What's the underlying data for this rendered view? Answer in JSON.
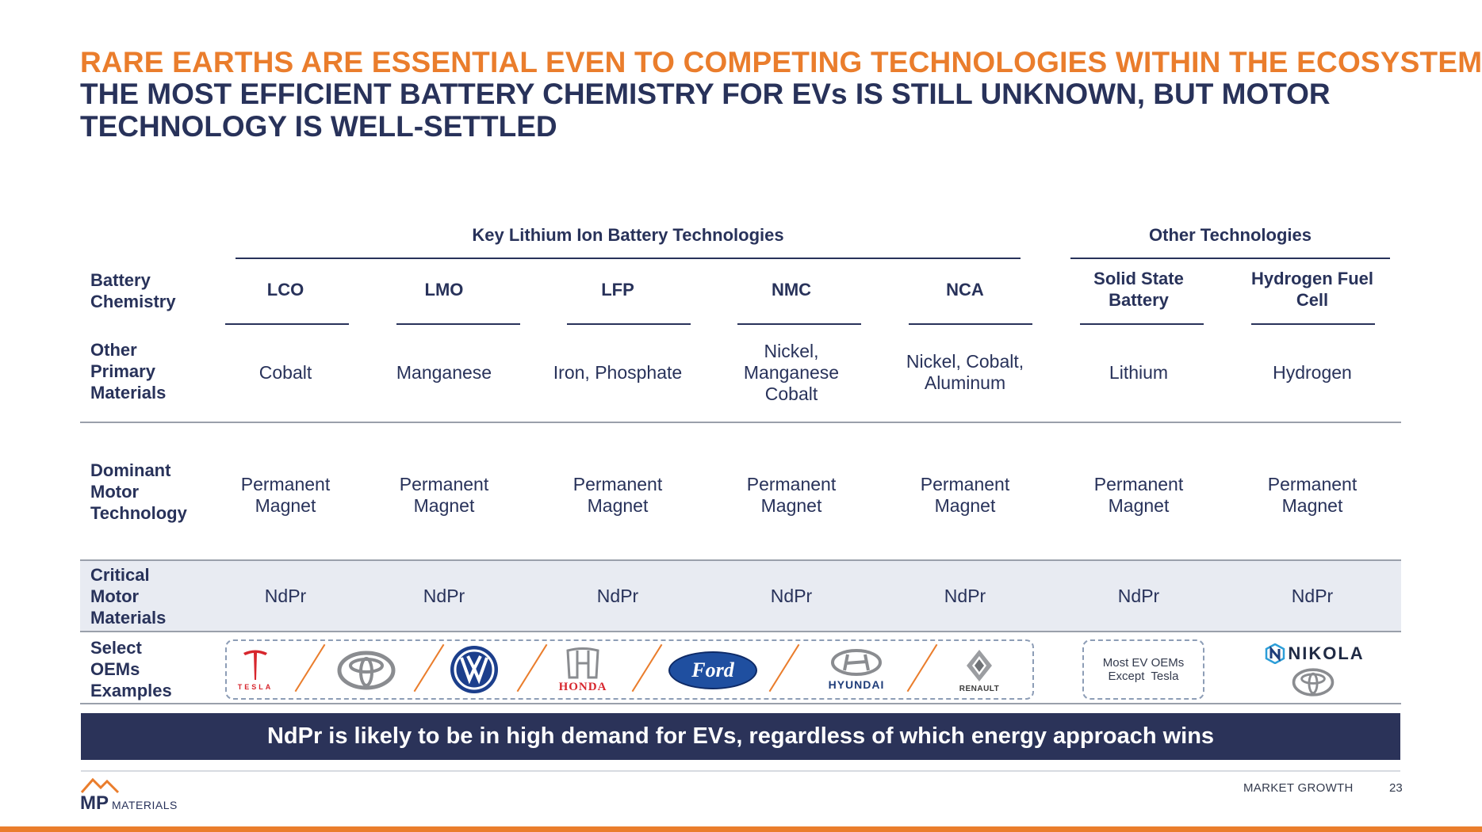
{
  "headline": "RARE EARTHS ARE ESSENTIAL EVEN TO COMPETING TECHNOLOGIES WITHIN THE ECOSYSTEM",
  "subheadline": "THE MOST EFFICIENT BATTERY CHEMISTRY FOR EVs IS STILL UNKNOWN, BUT MOTOR TECHNOLOGY IS WELL-SETTLED",
  "groups": {
    "lithium_ion": "Key Lithium Ion Battery Technologies",
    "other": "Other Technologies"
  },
  "row_labels": {
    "chemistry": [
      "Battery",
      "Chemistry"
    ],
    "materials": [
      "Other",
      "Primary",
      "Materials"
    ],
    "motor": [
      "Dominant",
      "Motor",
      "Technology"
    ],
    "critical": [
      "Critical",
      "Motor",
      "Materials"
    ],
    "oems": [
      "Select",
      "OEMs",
      "Examples"
    ]
  },
  "columns": [
    {
      "head": [
        "LCO"
      ],
      "materials": [
        "Cobalt"
      ],
      "motor": [
        "Permanent",
        "Magnet"
      ],
      "critical": "NdPr"
    },
    {
      "head": [
        "LMO"
      ],
      "materials": [
        "Manganese"
      ],
      "motor": [
        "Permanent",
        "Magnet"
      ],
      "critical": "NdPr"
    },
    {
      "head": [
        "LFP"
      ],
      "materials": [
        "Iron, Phosphate"
      ],
      "motor": [
        "Permanent",
        "Magnet"
      ],
      "critical": "NdPr"
    },
    {
      "head": [
        "NMC"
      ],
      "materials": [
        "Nickel,",
        "Manganese",
        "Cobalt"
      ],
      "motor": [
        "Permanent",
        "Magnet"
      ],
      "critical": "NdPr"
    },
    {
      "head": [
        "NCA"
      ],
      "materials": [
        "Nickel, Cobalt,",
        "Aluminum"
      ],
      "motor": [
        "Permanent",
        "Magnet"
      ],
      "critical": "NdPr"
    },
    {
      "head": [
        "Solid State",
        "Battery"
      ],
      "materials": [
        "Lithium"
      ],
      "motor": [
        "Permanent",
        "Magnet"
      ],
      "critical": "NdPr"
    },
    {
      "head": [
        "Hydrogen Fuel",
        "Cell"
      ],
      "materials": [
        "Hydrogen"
      ],
      "motor": [
        "Permanent",
        "Magnet"
      ],
      "critical": "NdPr"
    }
  ],
  "oems": {
    "tesla": "TESLA",
    "honda": "HONDA",
    "ford": "Ford",
    "hyundai": "HYUNDAI",
    "renault": "RENAULT",
    "nikola": "NIKOLA",
    "solid_state_note": [
      "Most EV OEMs",
      "Except  Tesla"
    ]
  },
  "banner": "NdPr is likely to be in high demand for EVs, regardless of which energy approach wins",
  "footer": {
    "section": "MARKET GROWTH",
    "page": "23",
    "logo_mp": "MP",
    "logo_materials": "MATERIALS"
  },
  "colors": {
    "orange": "#ea7d2c",
    "navy": "#28325a",
    "banner": "#2b3359",
    "shade": "#e8ebf2"
  }
}
